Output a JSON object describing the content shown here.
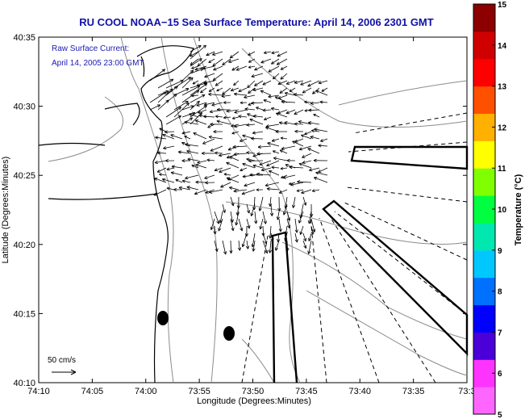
{
  "title": "RU COOL  NOAA−15  Sea Surface Temperature:  April 14, 2006 2301 GMT",
  "annotation": {
    "line1": "Raw Surface Current:",
    "line2": "April 14, 2005 23:00 GMT"
  },
  "axes": {
    "xlabel": "Longitude (Degrees:Minutes)",
    "ylabel": "Latitude (Degrees:Minutes)",
    "xticks": [
      "74:10",
      "74:05",
      "74:00",
      "73:55",
      "73:50",
      "73:45",
      "73:40",
      "73:35",
      "73:3"
    ],
    "yticks": [
      "40:35",
      "40:30",
      "40:25",
      "40:20",
      "40:15",
      "40:10"
    ]
  },
  "scale_label": "50 cm/s",
  "colorbar": {
    "label": "Temperature (°C)",
    "ticks": [
      "15",
      "14",
      "13",
      "12",
      "11",
      "10",
      "9",
      "8",
      "7",
      "6",
      "5"
    ],
    "colors": [
      "#ff66ff",
      "#ff33ff",
      "#4b00d8",
      "#0000ff",
      "#0070ff",
      "#00c8ff",
      "#00e8b0",
      "#00ff40",
      "#80ff00",
      "#ffff00",
      "#ffb000",
      "#ff5000",
      "#ff0000",
      "#d00000",
      "#8c0000"
    ]
  },
  "markers": [
    "station-marker",
    "station-marker"
  ],
  "colors": {
    "title": "#1010a8",
    "annotation": "#1a1ab4",
    "land_outline": "#000000",
    "bathymetry": "#8c8c8c",
    "vectors": "#000000"
  }
}
